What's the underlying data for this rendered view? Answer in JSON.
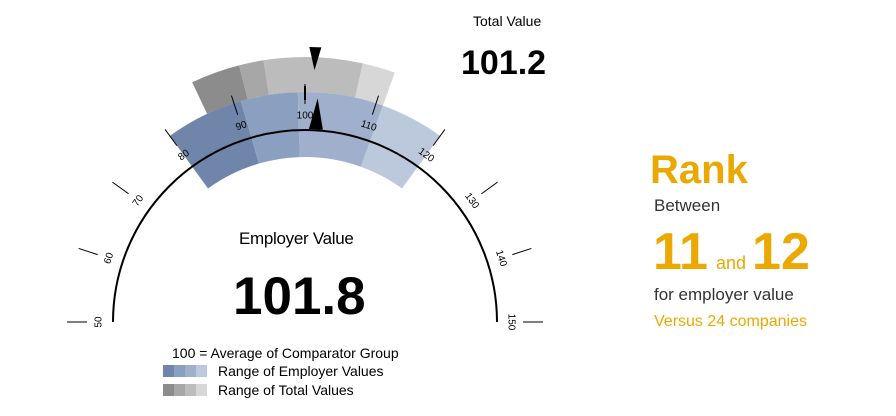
{
  "chart_data": {
    "type": "gauge",
    "scale": {
      "min": 50,
      "max": 150,
      "ticks": [
        50,
        60,
        70,
        80,
        90,
        100,
        110,
        120,
        130,
        140,
        150
      ]
    },
    "employer": {
      "label": "Employer Value",
      "value": "101.8",
      "value_num": 101.8,
      "range": [
        80,
        120
      ],
      "bands": [
        {
          "from": 80,
          "to": 91,
          "color": "#6f86aa"
        },
        {
          "from": 91,
          "to": 99,
          "color": "#8b9fc0"
        },
        {
          "from": 99,
          "to": 111,
          "color": "#a0b0cc"
        },
        {
          "from": 111,
          "to": 120,
          "color": "#bcc8dc"
        }
      ]
    },
    "total": {
      "label": "Total Value",
      "value": "101.2",
      "value_num": 101.2,
      "range": [
        86,
        111
      ],
      "bands": [
        {
          "from": 86,
          "to": 92,
          "color": "#8c8c8c"
        },
        {
          "from": 92,
          "to": 95,
          "color": "#a7a7a7"
        },
        {
          "from": 95,
          "to": 107,
          "color": "#bcbcbc"
        },
        {
          "from": 107,
          "to": 111,
          "color": "#d7d7d7"
        }
      ]
    },
    "legend": {
      "average_note": "100 = Average of Comparator Group",
      "employer_range": "Range of Employer Values",
      "total_range": "Range of Total Values"
    }
  },
  "rank": {
    "title": "Rank",
    "between": "Between",
    "from": "11",
    "and": "and",
    "to": "12",
    "for_text": "for employer value",
    "versus": "Versus 24 companies"
  },
  "colors": {
    "accent": "#eba800",
    "employer_swatches": [
      "#6f86aa",
      "#8b9fc0",
      "#a0b0cc",
      "#bcc8dc"
    ],
    "total_swatches": [
      "#8c8c8c",
      "#a7a7a7",
      "#bcbcbc",
      "#d7d7d7"
    ]
  }
}
